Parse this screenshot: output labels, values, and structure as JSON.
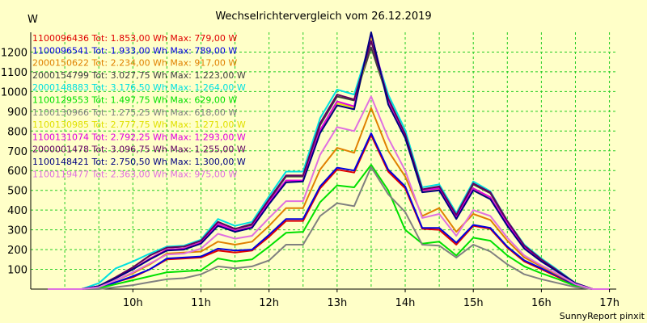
{
  "chart_data": {
    "type": "line",
    "title": "Wechselrichtervergleich vom 26.12.2019",
    "ylabel": "W",
    "xlabel": "",
    "footer": "SunnyReport pinxit",
    "x_ticks": [
      "10h",
      "11h",
      "12h",
      "13h",
      "14h",
      "15h",
      "16h",
      "17h"
    ],
    "x_tick_values": [
      10,
      11,
      12,
      13,
      14,
      15,
      16,
      17
    ],
    "y_ticks": [
      100,
      200,
      300,
      400,
      500,
      600,
      700,
      800,
      900,
      1000,
      1100,
      1200
    ],
    "xlim": [
      8.5,
      17.1
    ],
    "ylim": [
      0,
      1300
    ],
    "grid": true,
    "legend_placement": "top-left",
    "x": [
      8.75,
      9.0,
      9.25,
      9.5,
      9.75,
      10.0,
      10.25,
      10.5,
      10.75,
      11.0,
      11.25,
      11.5,
      11.75,
      12.0,
      12.25,
      12.5,
      12.75,
      13.0,
      13.25,
      13.5,
      13.75,
      14.0,
      14.25,
      14.5,
      14.75,
      15.0,
      15.25,
      15.5,
      15.75,
      16.0,
      16.25,
      16.5,
      16.75,
      17.0
    ],
    "series": [
      {
        "name": "1100096436 Tot: 1.853,00 Wh Max: 779,00 W",
        "color": "#e00000",
        "values": [
          0,
          0,
          0,
          5,
          35,
          60,
          100,
          150,
          155,
          160,
          195,
          185,
          195,
          265,
          345,
          345,
          510,
          605,
          590,
          779,
          595,
          510,
          305,
          300,
          225,
          320,
          305,
          210,
          140,
          100,
          60,
          20,
          0,
          0
        ]
      },
      {
        "name": "1100096541 Tot: 1.933,00 Wh Max: 789,00 W",
        "color": "#0000e0",
        "values": [
          0,
          0,
          0,
          5,
          35,
          65,
          100,
          155,
          160,
          165,
          205,
          195,
          200,
          275,
          355,
          355,
          520,
          615,
          600,
          789,
          605,
          520,
          310,
          310,
          235,
          325,
          310,
          215,
          145,
          105,
          65,
          20,
          0,
          0
        ]
      },
      {
        "name": "2000150622 Tot: 2.234,00 Wh Max: 917,00 W",
        "color": "#e08000",
        "values": [
          0,
          0,
          0,
          10,
          45,
          80,
          125,
          180,
          185,
          190,
          240,
          225,
          240,
          320,
          410,
          410,
          605,
          715,
          690,
          917,
          700,
          570,
          370,
          410,
          290,
          380,
          350,
          245,
          160,
          115,
          70,
          25,
          0,
          0
        ]
      },
      {
        "name": "2000154799 Tot: 3.027,75 Wh Max: 1.223,00 W",
        "color": "#404040",
        "values": [
          0,
          0,
          0,
          15,
          60,
          110,
          170,
          210,
          215,
          245,
          340,
          305,
          325,
          450,
          570,
          570,
          830,
          975,
          955,
          1223,
          960,
          780,
          500,
          515,
          370,
          530,
          485,
          340,
          220,
          150,
          90,
          30,
          0,
          0
        ]
      },
      {
        "name": "2000148883 Tot: 3.176,50 Wh Max: 1.264,00 W",
        "color": "#00e0e0",
        "values": [
          0,
          0,
          0,
          30,
          105,
          140,
          180,
          215,
          220,
          250,
          355,
          320,
          340,
          470,
          595,
          595,
          865,
          1010,
          985,
          1264,
          985,
          805,
          515,
          530,
          385,
          545,
          495,
          345,
          225,
          155,
          95,
          30,
          0,
          0
        ]
      },
      {
        "name": "1100129553 Tot: 1.497,75 Wh Max: 629,00 W",
        "color": "#00e000",
        "values": [
          0,
          0,
          0,
          5,
          25,
          45,
          65,
          85,
          90,
          95,
          155,
          140,
          150,
          215,
          285,
          290,
          440,
          525,
          515,
          629,
          500,
          300,
          230,
          240,
          170,
          260,
          245,
          170,
          115,
          80,
          50,
          15,
          0,
          0
        ]
      },
      {
        "name": "1100130966 Tot: 1.275,25 Wh Max: 618,00 W",
        "color": "#808080",
        "values": [
          0,
          0,
          0,
          0,
          10,
          20,
          35,
          50,
          55,
          75,
          115,
          105,
          115,
          145,
          225,
          225,
          370,
          435,
          420,
          618,
          480,
          390,
          225,
          220,
          160,
          225,
          190,
          125,
          75,
          50,
          30,
          10,
          0,
          0
        ]
      },
      {
        "name": "1100130985 Tot: 2.777,75 Wh Max: 1.271,00 W",
        "color": "#e0e000",
        "values": [
          0,
          0,
          0,
          15,
          55,
          100,
          155,
          200,
          205,
          235,
          325,
          295,
          315,
          435,
          545,
          550,
          800,
          940,
          920,
          1271,
          945,
          770,
          495,
          505,
          360,
          505,
          460,
          325,
          210,
          145,
          85,
          30,
          0,
          0
        ]
      },
      {
        "name": "1100131074 Tot: 2.792,25 Wh Max: 1.293,00 W",
        "color": "#e000e0",
        "values": [
          0,
          0,
          0,
          15,
          55,
          100,
          155,
          200,
          205,
          235,
          330,
          295,
          315,
          440,
          550,
          550,
          805,
          950,
          925,
          1293,
          955,
          780,
          500,
          510,
          365,
          510,
          465,
          330,
          210,
          145,
          85,
          30,
          0,
          0
        ]
      },
      {
        "name": "2000001478 Tot: 3.096,75 Wh Max: 1.255,00 W",
        "color": "#600060",
        "values": [
          0,
          0,
          0,
          15,
          60,
          110,
          170,
          210,
          215,
          245,
          340,
          305,
          330,
          455,
          575,
          575,
          840,
          985,
          960,
          1255,
          965,
          785,
          505,
          520,
          375,
          535,
          490,
          345,
          220,
          150,
          90,
          30,
          0,
          0
        ]
      },
      {
        "name": "1100148421 Tot: 2.750,50 Wh Max: 1.300,00 W",
        "color": "#000080",
        "values": [
          0,
          0,
          0,
          15,
          55,
          100,
          150,
          195,
          200,
          230,
          320,
          290,
          310,
          430,
          540,
          545,
          790,
          930,
          910,
          1300,
          935,
          765,
          490,
          500,
          355,
          500,
          455,
          320,
          205,
          140,
          85,
          30,
          0,
          0
        ]
      },
      {
        "name": "1100119477 Tot: 2.363,00 Wh Max: 975,00 W",
        "color": "#e070e0",
        "values": [
          0,
          0,
          0,
          10,
          45,
          85,
          130,
          175,
          180,
          205,
          280,
          255,
          270,
          360,
          445,
          445,
          680,
          820,
          800,
          975,
          765,
          600,
          360,
          380,
          270,
          400,
          370,
          260,
          170,
          120,
          75,
          25,
          0,
          0
        ]
      }
    ]
  }
}
